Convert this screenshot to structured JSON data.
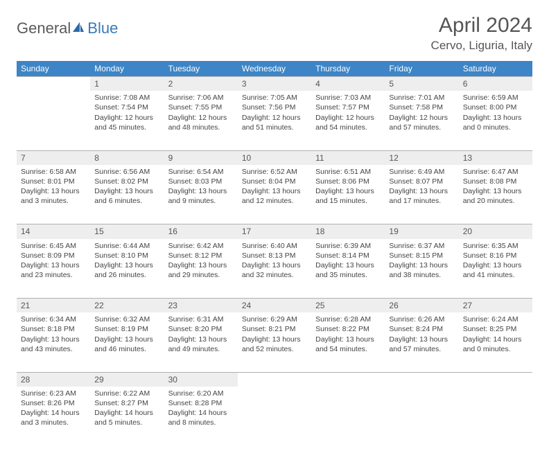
{
  "logo": {
    "part1": "General",
    "part2": "Blue"
  },
  "header": {
    "title": "April 2024",
    "location": "Cervo, Liguria, Italy"
  },
  "colors": {
    "header_bg": "#3d85c6",
    "header_fg": "#ffffff",
    "daynum_bg": "#eeeeee",
    "text": "#444444"
  },
  "weekdays": [
    "Sunday",
    "Monday",
    "Tuesday",
    "Wednesday",
    "Thursday",
    "Friday",
    "Saturday"
  ],
  "weeks": [
    {
      "nums": [
        "",
        "1",
        "2",
        "3",
        "4",
        "5",
        "6"
      ],
      "cells": [
        null,
        {
          "sunrise": "Sunrise: 7:08 AM",
          "sunset": "Sunset: 7:54 PM",
          "day1": "Daylight: 12 hours",
          "day2": "and 45 minutes."
        },
        {
          "sunrise": "Sunrise: 7:06 AM",
          "sunset": "Sunset: 7:55 PM",
          "day1": "Daylight: 12 hours",
          "day2": "and 48 minutes."
        },
        {
          "sunrise": "Sunrise: 7:05 AM",
          "sunset": "Sunset: 7:56 PM",
          "day1": "Daylight: 12 hours",
          "day2": "and 51 minutes."
        },
        {
          "sunrise": "Sunrise: 7:03 AM",
          "sunset": "Sunset: 7:57 PM",
          "day1": "Daylight: 12 hours",
          "day2": "and 54 minutes."
        },
        {
          "sunrise": "Sunrise: 7:01 AM",
          "sunset": "Sunset: 7:58 PM",
          "day1": "Daylight: 12 hours",
          "day2": "and 57 minutes."
        },
        {
          "sunrise": "Sunrise: 6:59 AM",
          "sunset": "Sunset: 8:00 PM",
          "day1": "Daylight: 13 hours",
          "day2": "and 0 minutes."
        }
      ]
    },
    {
      "nums": [
        "7",
        "8",
        "9",
        "10",
        "11",
        "12",
        "13"
      ],
      "cells": [
        {
          "sunrise": "Sunrise: 6:58 AM",
          "sunset": "Sunset: 8:01 PM",
          "day1": "Daylight: 13 hours",
          "day2": "and 3 minutes."
        },
        {
          "sunrise": "Sunrise: 6:56 AM",
          "sunset": "Sunset: 8:02 PM",
          "day1": "Daylight: 13 hours",
          "day2": "and 6 minutes."
        },
        {
          "sunrise": "Sunrise: 6:54 AM",
          "sunset": "Sunset: 8:03 PM",
          "day1": "Daylight: 13 hours",
          "day2": "and 9 minutes."
        },
        {
          "sunrise": "Sunrise: 6:52 AM",
          "sunset": "Sunset: 8:04 PM",
          "day1": "Daylight: 13 hours",
          "day2": "and 12 minutes."
        },
        {
          "sunrise": "Sunrise: 6:51 AM",
          "sunset": "Sunset: 8:06 PM",
          "day1": "Daylight: 13 hours",
          "day2": "and 15 minutes."
        },
        {
          "sunrise": "Sunrise: 6:49 AM",
          "sunset": "Sunset: 8:07 PM",
          "day1": "Daylight: 13 hours",
          "day2": "and 17 minutes."
        },
        {
          "sunrise": "Sunrise: 6:47 AM",
          "sunset": "Sunset: 8:08 PM",
          "day1": "Daylight: 13 hours",
          "day2": "and 20 minutes."
        }
      ]
    },
    {
      "nums": [
        "14",
        "15",
        "16",
        "17",
        "18",
        "19",
        "20"
      ],
      "cells": [
        {
          "sunrise": "Sunrise: 6:45 AM",
          "sunset": "Sunset: 8:09 PM",
          "day1": "Daylight: 13 hours",
          "day2": "and 23 minutes."
        },
        {
          "sunrise": "Sunrise: 6:44 AM",
          "sunset": "Sunset: 8:10 PM",
          "day1": "Daylight: 13 hours",
          "day2": "and 26 minutes."
        },
        {
          "sunrise": "Sunrise: 6:42 AM",
          "sunset": "Sunset: 8:12 PM",
          "day1": "Daylight: 13 hours",
          "day2": "and 29 minutes."
        },
        {
          "sunrise": "Sunrise: 6:40 AM",
          "sunset": "Sunset: 8:13 PM",
          "day1": "Daylight: 13 hours",
          "day2": "and 32 minutes."
        },
        {
          "sunrise": "Sunrise: 6:39 AM",
          "sunset": "Sunset: 8:14 PM",
          "day1": "Daylight: 13 hours",
          "day2": "and 35 minutes."
        },
        {
          "sunrise": "Sunrise: 6:37 AM",
          "sunset": "Sunset: 8:15 PM",
          "day1": "Daylight: 13 hours",
          "day2": "and 38 minutes."
        },
        {
          "sunrise": "Sunrise: 6:35 AM",
          "sunset": "Sunset: 8:16 PM",
          "day1": "Daylight: 13 hours",
          "day2": "and 41 minutes."
        }
      ]
    },
    {
      "nums": [
        "21",
        "22",
        "23",
        "24",
        "25",
        "26",
        "27"
      ],
      "cells": [
        {
          "sunrise": "Sunrise: 6:34 AM",
          "sunset": "Sunset: 8:18 PM",
          "day1": "Daylight: 13 hours",
          "day2": "and 43 minutes."
        },
        {
          "sunrise": "Sunrise: 6:32 AM",
          "sunset": "Sunset: 8:19 PM",
          "day1": "Daylight: 13 hours",
          "day2": "and 46 minutes."
        },
        {
          "sunrise": "Sunrise: 6:31 AM",
          "sunset": "Sunset: 8:20 PM",
          "day1": "Daylight: 13 hours",
          "day2": "and 49 minutes."
        },
        {
          "sunrise": "Sunrise: 6:29 AM",
          "sunset": "Sunset: 8:21 PM",
          "day1": "Daylight: 13 hours",
          "day2": "and 52 minutes."
        },
        {
          "sunrise": "Sunrise: 6:28 AM",
          "sunset": "Sunset: 8:22 PM",
          "day1": "Daylight: 13 hours",
          "day2": "and 54 minutes."
        },
        {
          "sunrise": "Sunrise: 6:26 AM",
          "sunset": "Sunset: 8:24 PM",
          "day1": "Daylight: 13 hours",
          "day2": "and 57 minutes."
        },
        {
          "sunrise": "Sunrise: 6:24 AM",
          "sunset": "Sunset: 8:25 PM",
          "day1": "Daylight: 14 hours",
          "day2": "and 0 minutes."
        }
      ]
    },
    {
      "nums": [
        "28",
        "29",
        "30",
        "",
        "",
        "",
        ""
      ],
      "cells": [
        {
          "sunrise": "Sunrise: 6:23 AM",
          "sunset": "Sunset: 8:26 PM",
          "day1": "Daylight: 14 hours",
          "day2": "and 3 minutes."
        },
        {
          "sunrise": "Sunrise: 6:22 AM",
          "sunset": "Sunset: 8:27 PM",
          "day1": "Daylight: 14 hours",
          "day2": "and 5 minutes."
        },
        {
          "sunrise": "Sunrise: 6:20 AM",
          "sunset": "Sunset: 8:28 PM",
          "day1": "Daylight: 14 hours",
          "day2": "and 8 minutes."
        },
        null,
        null,
        null,
        null
      ]
    }
  ]
}
